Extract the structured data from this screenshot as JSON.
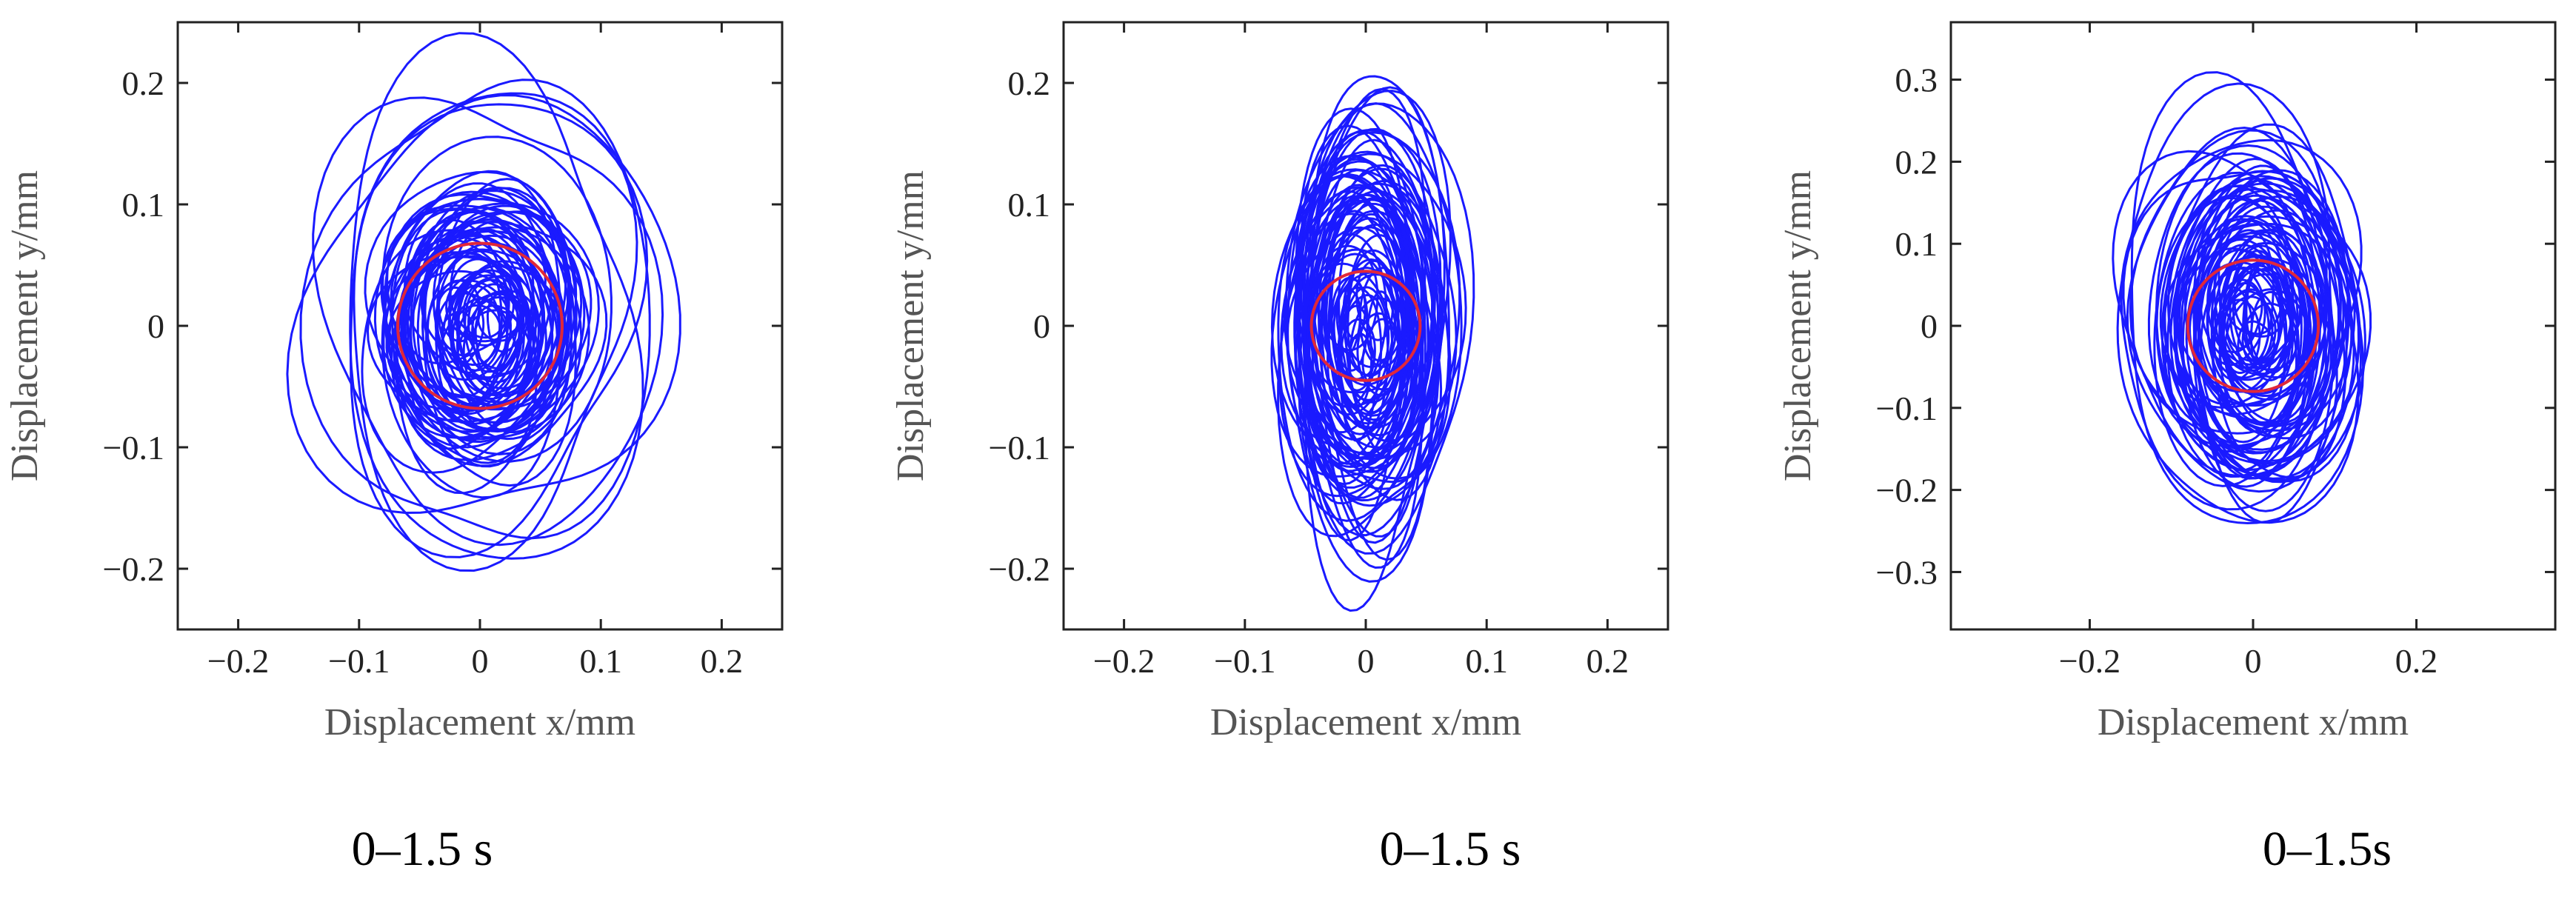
{
  "chart_data": [
    {
      "type": "line",
      "subtype": "orbit",
      "xlabel": "Displacement x/mm",
      "ylabel": "Displacement y/mm",
      "caption": "0–1.5 s",
      "xlim": [
        -0.25,
        0.25
      ],
      "ylim": [
        -0.25,
        0.25
      ],
      "xticks": [
        -0.2,
        -0.1,
        0,
        0.1,
        0.2
      ],
      "yticks": [
        -0.2,
        -0.1,
        0,
        0.1,
        0.2
      ],
      "tick_labels_x": [
        "−0.2",
        "−0.1",
        "0",
        "0.1",
        "0.2"
      ],
      "tick_labels_y": [
        "−0.2",
        "−0.1",
        "0",
        "0.1",
        "0.2"
      ],
      "reference_circle_radius": 0.068,
      "orbit_core_extent": {
        "x": [
          -0.09,
          0.09
        ],
        "y": [
          -0.12,
          0.12
        ]
      },
      "orbit_max_extent": {
        "x": [
          -0.15,
          0.17
        ],
        "y": [
          -0.21,
          0.24
        ]
      },
      "line_color": "#1a1aff",
      "reference_color": "#e0283a"
    },
    {
      "type": "line",
      "subtype": "orbit",
      "xlabel": "Displacement x/mm",
      "ylabel": "Displacement y/mm",
      "caption": "0–1.5 s",
      "xlim": [
        -0.25,
        0.25
      ],
      "ylim": [
        -0.25,
        0.25
      ],
      "xticks": [
        -0.2,
        -0.1,
        0,
        0.1,
        0.2
      ],
      "yticks": [
        -0.2,
        -0.1,
        0,
        0.1,
        0.2
      ],
      "tick_labels_x": [
        "−0.2",
        "−0.1",
        "0",
        "0.1",
        "0.2"
      ],
      "tick_labels_y": [
        "−0.2",
        "−0.1",
        "0",
        "0.1",
        "0.2"
      ],
      "reference_circle_radius": 0.045,
      "orbit_core_extent": {
        "x": [
          -0.065,
          0.065
        ],
        "y": [
          -0.15,
          0.15
        ]
      },
      "orbit_max_extent": {
        "x": [
          -0.07,
          0.08
        ],
        "y": [
          -0.21,
          0.21
        ]
      },
      "line_color": "#1a1aff",
      "reference_color": "#e0283a"
    },
    {
      "type": "line",
      "subtype": "orbit",
      "xlabel": "Displacement x/mm",
      "ylabel": "Displacement y/mm",
      "caption": "0–1.5s",
      "xlim": [
        -0.37,
        0.37
      ],
      "ylim": [
        -0.37,
        0.37
      ],
      "xticks": [
        -0.2,
        0,
        0.2
      ],
      "yticks": [
        -0.3,
        -0.2,
        -0.1,
        0,
        0.1,
        0.2,
        0.3
      ],
      "tick_labels_x": [
        "−0.2",
        "0",
        "0.2"
      ],
      "tick_labels_y": [
        "−0.3",
        "−0.2",
        "−0.1",
        "0",
        "0.1",
        "0.2",
        "0.3"
      ],
      "reference_circle_radius": 0.08,
      "orbit_core_extent": {
        "x": [
          -0.11,
          0.11
        ],
        "y": [
          -0.18,
          0.2
        ]
      },
      "orbit_max_extent": {
        "x": [
          -0.19,
          0.13
        ],
        "y": [
          -0.25,
          0.3
        ]
      },
      "line_color": "#1a1aff",
      "reference_color": "#e0283a"
    }
  ]
}
